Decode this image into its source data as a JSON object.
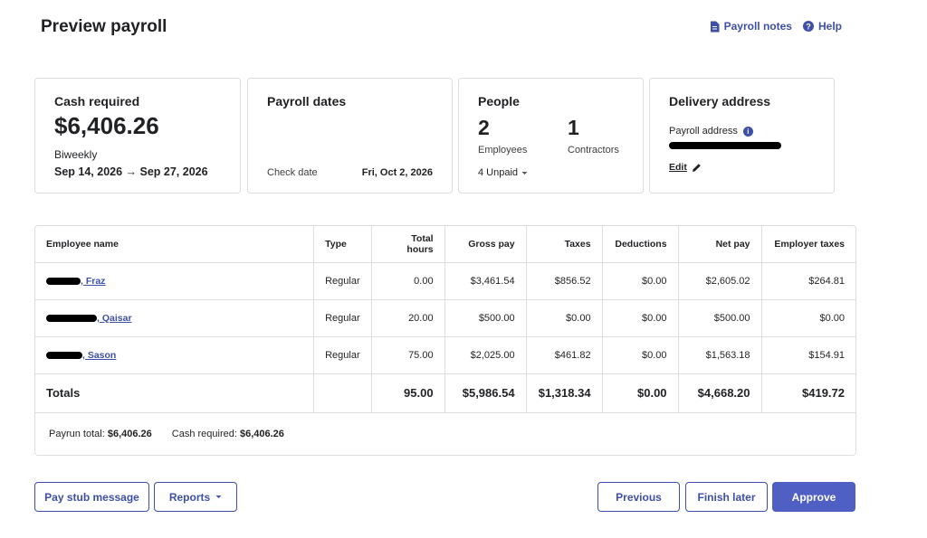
{
  "header": {
    "title": "Preview payroll",
    "payroll_notes_label": "Payroll notes",
    "help_label": "Help"
  },
  "cash_card": {
    "title": "Cash required",
    "amount": "$6,406.26",
    "frequency": "Biweekly",
    "period": "Sep 14, 2026 → Sep 27, 2026"
  },
  "dates_card": {
    "title": "Payroll dates",
    "check_date_label": "Check date",
    "check_date_value": "Fri, Oct 2, 2026"
  },
  "people_card": {
    "title": "People",
    "employees_count": "2",
    "employees_label": "Employees",
    "contractors_count": "1",
    "contractors_label": "Contractors",
    "unpaid_label": "4 Unpaid"
  },
  "delivery_card": {
    "title": "Delivery address",
    "address_label": "Payroll address",
    "edit_label": "Edit"
  },
  "table": {
    "headers": [
      "Employee name",
      "Type",
      "Total hours",
      "Gross pay",
      "Taxes",
      "Deductions",
      "Net pay",
      "Employer taxes"
    ],
    "rows": [
      {
        "name": ", Fraz",
        "type": "Regular",
        "hours": "0.00",
        "gross": "$3,461.54",
        "taxes": "$856.52",
        "deductions": "$0.00",
        "net": "$2,605.02",
        "employer_taxes": "$264.81"
      },
      {
        "name": ", Qaisar",
        "type": "Regular",
        "hours": "20.00",
        "gross": "$500.00",
        "taxes": "$0.00",
        "deductions": "$0.00",
        "net": "$500.00",
        "employer_taxes": "$0.00"
      },
      {
        "name": ", Sason",
        "type": "Regular",
        "hours": "75.00",
        "gross": "$2,025.00",
        "taxes": "$461.82",
        "deductions": "$0.00",
        "net": "$1,563.18",
        "employer_taxes": "$154.91"
      }
    ],
    "totals": {
      "label": "Totals",
      "hours": "95.00",
      "gross": "$5,986.54",
      "taxes": "$1,318.34",
      "deductions": "$0.00",
      "net": "$4,668.20",
      "employer_taxes": "$419.72"
    },
    "payrun_total_label": "Payrun total:",
    "payrun_total_value": "$6,406.26",
    "cash_required_label": "Cash required:",
    "cash_required_value": "$6,406.26"
  },
  "footer": {
    "pay_stub_label": "Pay stub message",
    "reports_label": "Reports",
    "previous_label": "Previous",
    "finish_later_label": "Finish later",
    "approve_label": "Approve"
  },
  "colors": {
    "accent": "#3d4fa8",
    "primary_button": "#4f5fc4",
    "border": "#dcdde0"
  },
  "icons": {
    "payroll_notes": "document-icon",
    "help": "question-circle-icon",
    "info": "info-icon",
    "edit": "pencil-icon",
    "dropdown": "caret-down-icon"
  }
}
